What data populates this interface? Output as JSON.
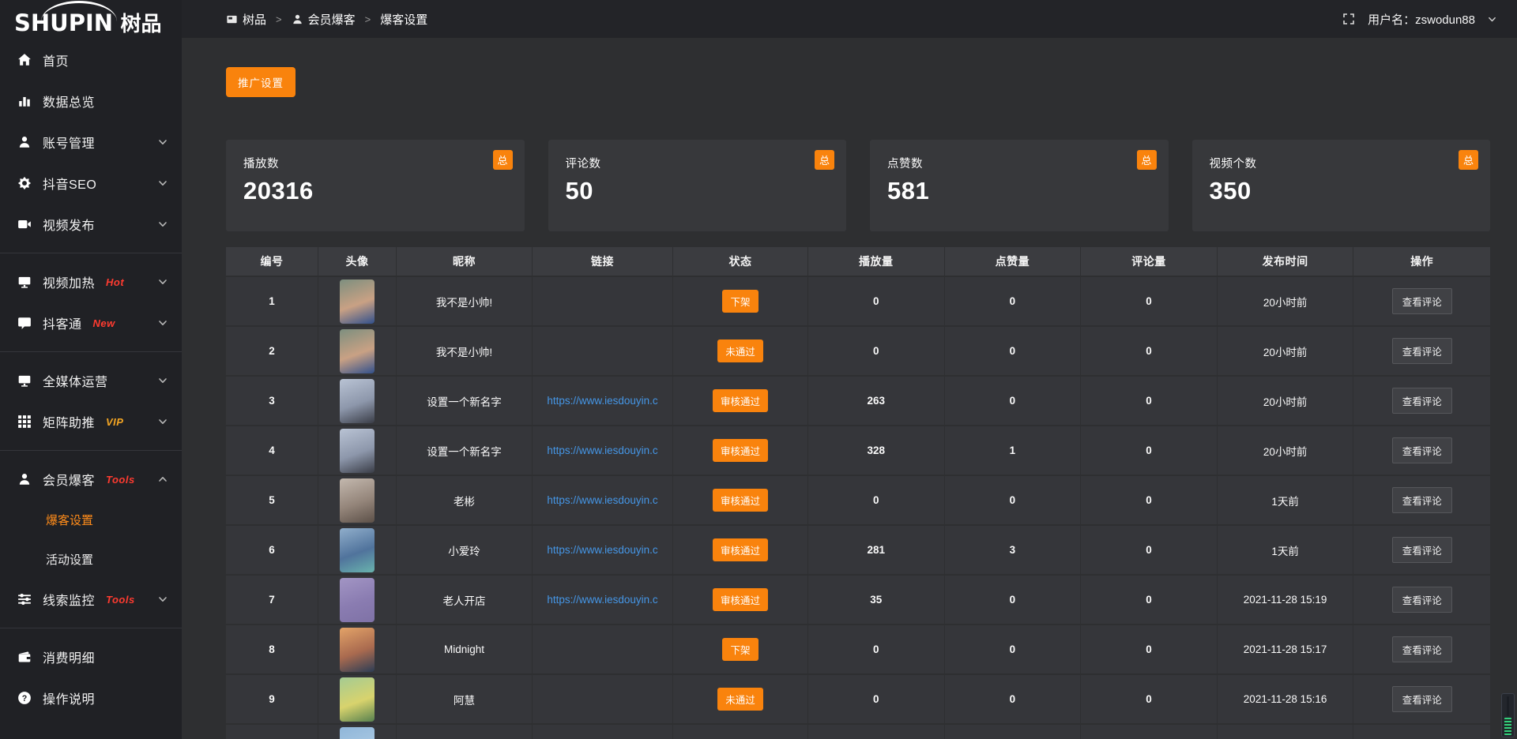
{
  "topbar": {
    "separator": ">",
    "username": "用户名：zswodun88",
    "breadcrumb": [
      {
        "key": "shupin",
        "icon": "doc",
        "label": "树品"
      },
      {
        "key": "member-baoke",
        "icon": "user",
        "label": "会员爆客"
      },
      {
        "key": "baoke-settings",
        "icon": null,
        "label": "爆客设置"
      }
    ]
  },
  "sidebar": {
    "logo_latin": "SHUPIN",
    "logo_cjk": "树品",
    "sections": [
      {
        "items": [
          {
            "key": "home",
            "icon": "home",
            "label": "首页"
          },
          {
            "key": "data-overview",
            "icon": "chart",
            "label": "数据总览"
          },
          {
            "key": "account-management",
            "icon": "user",
            "label": "账号管理",
            "chevron": "down"
          },
          {
            "key": "douyin-seo",
            "icon": "gear",
            "label": "抖音SEO",
            "chevron": "down"
          },
          {
            "key": "video-publish",
            "icon": "video",
            "label": "视频发布",
            "chevron": "down"
          }
        ]
      },
      {
        "items": [
          {
            "key": "video-heating",
            "icon": "monitor",
            "label": "视频加热",
            "tag": {
              "text": "Hot",
              "color": "#ff3b30"
            },
            "chevron": "down"
          },
          {
            "key": "douketong",
            "icon": "comment",
            "label": "抖客通",
            "tag": {
              "text": "New",
              "color": "#ff3b30"
            },
            "chevron": "down"
          }
        ]
      },
      {
        "items": [
          {
            "key": "all-media-operation",
            "icon": "monitor",
            "label": "全媒体运营",
            "chevron": "down"
          },
          {
            "key": "matrix-boost",
            "icon": "grid",
            "label": "矩阵助推",
            "tag": {
              "text": "VIP",
              "color": "#f5a623"
            },
            "chevron": "down"
          }
        ]
      },
      {
        "items": [
          {
            "key": "member-baoke",
            "icon": "user",
            "label": "会员爆客",
            "tag": {
              "text": "Tools",
              "color": "#ff3b30"
            },
            "chevron": "up",
            "children": [
              {
                "key": "baoke-settings",
                "label": "爆客设置",
                "active": true
              },
              {
                "key": "activity-settings",
                "label": "活动设置",
                "active": false
              }
            ]
          },
          {
            "key": "clue-monitoring",
            "icon": "sliders",
            "label": "线索监控",
            "tag": {
              "text": "Tools",
              "color": "#ff3b30"
            },
            "chevron": "down"
          }
        ]
      },
      {
        "items": [
          {
            "key": "consumption-details",
            "icon": "wallet",
            "label": "消费明细"
          },
          {
            "key": "operation-guide",
            "icon": "question",
            "label": "操作说明"
          }
        ]
      }
    ]
  },
  "main": {
    "promo_button": "推广设置",
    "cards": [
      {
        "label": "播放数",
        "value": "20316",
        "badge": "总"
      },
      {
        "label": "评论数",
        "value": "50",
        "badge": "总"
      },
      {
        "label": "点赞数",
        "value": "581",
        "badge": "总"
      },
      {
        "label": "视频个数",
        "value": "350",
        "badge": "总"
      }
    ],
    "table": {
      "headers": [
        "编号",
        "头像",
        "昵称",
        "链接",
        "状态",
        "播放量",
        "点赞量",
        "评论量",
        "发布时间",
        "操作"
      ],
      "action_label": "查看评论",
      "rows": [
        {
          "id": "1",
          "nickname": "我不是小帅!",
          "link": "",
          "status": "下架",
          "plays": "0",
          "likes": "0",
          "comments": "0",
          "time": "20小时前",
          "avatar": [
            "#7d8f7f",
            "#c9a184",
            "#31508c"
          ]
        },
        {
          "id": "2",
          "nickname": "我不是小帅!",
          "link": "",
          "status": "未通过",
          "plays": "0",
          "likes": "0",
          "comments": "0",
          "time": "20小时前",
          "avatar": [
            "#7d8f7f",
            "#c9a184",
            "#31508c"
          ]
        },
        {
          "id": "3",
          "nickname": "设置一个新名字",
          "link": "https://www.iesdouyin.c",
          "status": "审核通过",
          "plays": "263",
          "likes": "0",
          "comments": "0",
          "time": "20小时前",
          "avatar": [
            "#b9c3d4",
            "#8d97ab",
            "#3a3d47"
          ]
        },
        {
          "id": "4",
          "nickname": "设置一个新名字",
          "link": "https://www.iesdouyin.c",
          "status": "审核通过",
          "plays": "328",
          "likes": "1",
          "comments": "0",
          "time": "20小时前",
          "avatar": [
            "#b9c3d4",
            "#8d97ab",
            "#3a3d47"
          ]
        },
        {
          "id": "5",
          "nickname": "老彬",
          "link": "https://www.iesdouyin.c",
          "status": "审核通过",
          "plays": "0",
          "likes": "0",
          "comments": "0",
          "time": "1天前",
          "avatar": [
            "#c3b8ae",
            "#94857a",
            "#5c5048"
          ]
        },
        {
          "id": "6",
          "nickname": "小爱玲",
          "link": "https://www.iesdouyin.c",
          "status": "审核通过",
          "plays": "281",
          "likes": "3",
          "comments": "0",
          "time": "1天前",
          "avatar": [
            "#90aecb",
            "#50739c",
            "#69b3ad"
          ]
        },
        {
          "id": "7",
          "nickname": "老人开店",
          "link": "https://www.iesdouyin.c",
          "status": "审核通过",
          "plays": "35",
          "likes": "0",
          "comments": "0",
          "time": "2021-11-28 15:19",
          "avatar": [
            "#a295c4",
            "#8a7cb1",
            "#7f72a6"
          ]
        },
        {
          "id": "8",
          "nickname": "Midnight",
          "link": "",
          "status": "下架",
          "plays": "0",
          "likes": "0",
          "comments": "0",
          "time": "2021-11-28 15:17",
          "avatar": [
            "#e3a368",
            "#a96a4f",
            "#2c3d55"
          ]
        },
        {
          "id": "9",
          "nickname": "阿慧",
          "link": "",
          "status": "未通过",
          "plays": "0",
          "likes": "0",
          "comments": "0",
          "time": "2021-11-28 15:16",
          "avatar": [
            "#a4cb93",
            "#d8d36d",
            "#57814f"
          ]
        },
        {
          "id": "",
          "nickname": "",
          "link": "",
          "status": "",
          "plays": "",
          "likes": "",
          "comments": "",
          "time": "",
          "avatar": [
            "#8fb6d9",
            "#a9c8e2",
            "#9cc0dd"
          ]
        }
      ]
    }
  },
  "colors": {
    "accent_orange": "#f9830d",
    "active_menu_orange": "#ff8c1a",
    "tag_red": "#ff3b30",
    "tag_vip_orange": "#f5a623",
    "link_blue": "#4596e6"
  }
}
